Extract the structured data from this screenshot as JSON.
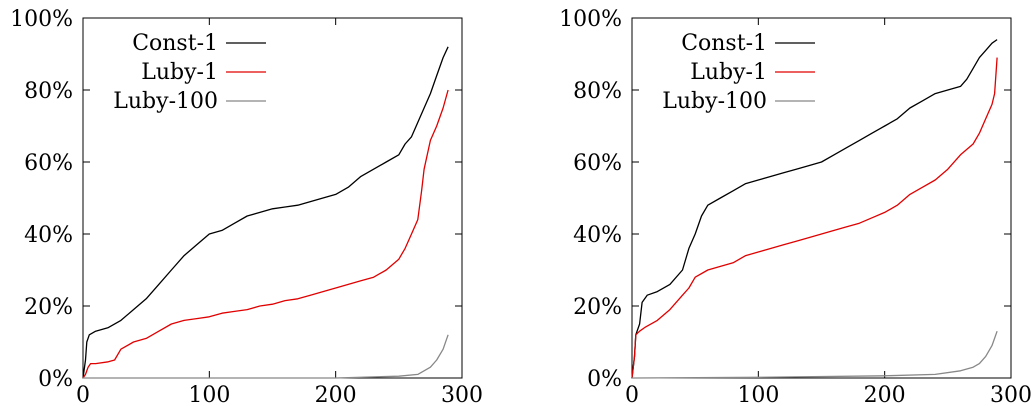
{
  "chart_data": [
    {
      "type": "line",
      "title": "",
      "xlabel": "",
      "ylabel": "",
      "xlim": [
        0,
        300
      ],
      "ylim": [
        0,
        100
      ],
      "x_ticks": [
        0,
        100,
        200,
        300
      ],
      "y_ticks": [
        0,
        20,
        40,
        60,
        80,
        100
      ],
      "y_tick_labels": [
        "0%",
        "20%",
        "40%",
        "60%",
        "80%",
        "100%"
      ],
      "grid": false,
      "legend_position": "top-left",
      "series": [
        {
          "name": "Const-1",
          "color": "#000000",
          "points": [
            [
              0,
              0
            ],
            [
              2,
              5
            ],
            [
              3,
              10
            ],
            [
              5,
              12
            ],
            [
              10,
              13
            ],
            [
              20,
              14
            ],
            [
              30,
              16
            ],
            [
              40,
              19
            ],
            [
              50,
              22
            ],
            [
              60,
              26
            ],
            [
              70,
              30
            ],
            [
              80,
              34
            ],
            [
              90,
              37
            ],
            [
              100,
              40
            ],
            [
              110,
              41
            ],
            [
              120,
              43
            ],
            [
              130,
              45
            ],
            [
              140,
              46
            ],
            [
              150,
              47
            ],
            [
              160,
              47.5
            ],
            [
              170,
              48
            ],
            [
              180,
              49
            ],
            [
              190,
              50
            ],
            [
              200,
              51
            ],
            [
              210,
              53
            ],
            [
              220,
              56
            ],
            [
              230,
              58
            ],
            [
              240,
              60
            ],
            [
              250,
              62
            ],
            [
              255,
              65
            ],
            [
              260,
              67
            ],
            [
              265,
              71
            ],
            [
              270,
              75
            ],
            [
              275,
              79
            ],
            [
              280,
              84
            ],
            [
              285,
              89
            ],
            [
              289,
              92
            ]
          ]
        },
        {
          "name": "Luby-1",
          "color": "#e00000",
          "points": [
            [
              0,
              0
            ],
            [
              2,
              1
            ],
            [
              4,
              3
            ],
            [
              6,
              4
            ],
            [
              10,
              4
            ],
            [
              20,
              4.5
            ],
            [
              25,
              5
            ],
            [
              30,
              8
            ],
            [
              40,
              10
            ],
            [
              50,
              11
            ],
            [
              60,
              13
            ],
            [
              70,
              15
            ],
            [
              80,
              16
            ],
            [
              90,
              16.5
            ],
            [
              100,
              17
            ],
            [
              110,
              18
            ],
            [
              120,
              18.5
            ],
            [
              130,
              19
            ],
            [
              140,
              20
            ],
            [
              150,
              20.5
            ],
            [
              160,
              21.5
            ],
            [
              170,
              22
            ],
            [
              180,
              23
            ],
            [
              190,
              24
            ],
            [
              200,
              25
            ],
            [
              210,
              26
            ],
            [
              220,
              27
            ],
            [
              230,
              28
            ],
            [
              240,
              30
            ],
            [
              250,
              33
            ],
            [
              255,
              36
            ],
            [
              260,
              40
            ],
            [
              265,
              44
            ],
            [
              268,
              52
            ],
            [
              270,
              58
            ],
            [
              275,
              66
            ],
            [
              280,
              70
            ],
            [
              285,
              75
            ],
            [
              289,
              80
            ]
          ]
        },
        {
          "name": "Luby-100",
          "color": "#888888",
          "points": [
            [
              0,
              0
            ],
            [
              100,
              0
            ],
            [
              200,
              0
            ],
            [
              250,
              0.5
            ],
            [
              265,
              1
            ],
            [
              270,
              2
            ],
            [
              275,
              3
            ],
            [
              280,
              5
            ],
            [
              285,
              8
            ],
            [
              289,
              12
            ]
          ]
        }
      ]
    },
    {
      "type": "line",
      "title": "",
      "xlabel": "",
      "ylabel": "",
      "xlim": [
        0,
        300
      ],
      "ylim": [
        0,
        100
      ],
      "x_ticks": [
        0,
        100,
        200,
        300
      ],
      "y_ticks": [
        0,
        20,
        40,
        60,
        80,
        100
      ],
      "y_tick_labels": [
        "0%",
        "20%",
        "40%",
        "60%",
        "80%",
        "100%"
      ],
      "grid": false,
      "legend_position": "top-left",
      "series": [
        {
          "name": "Const-1",
          "color": "#000000",
          "points": [
            [
              0,
              0
            ],
            [
              2,
              6
            ],
            [
              3,
              12
            ],
            [
              6,
              15
            ],
            [
              8,
              21
            ],
            [
              12,
              23
            ],
            [
              20,
              24
            ],
            [
              30,
              26
            ],
            [
              40,
              30
            ],
            [
              45,
              36
            ],
            [
              50,
              40
            ],
            [
              55,
              45
            ],
            [
              60,
              48
            ],
            [
              70,
              50
            ],
            [
              80,
              52
            ],
            [
              90,
              54
            ],
            [
              100,
              55
            ],
            [
              110,
              56
            ],
            [
              120,
              57
            ],
            [
              130,
              58
            ],
            [
              140,
              59
            ],
            [
              150,
              60
            ],
            [
              160,
              62
            ],
            [
              170,
              64
            ],
            [
              180,
              66
            ],
            [
              190,
              68
            ],
            [
              200,
              70
            ],
            [
              210,
              72
            ],
            [
              220,
              75
            ],
            [
              230,
              77
            ],
            [
              240,
              79
            ],
            [
              250,
              80
            ],
            [
              260,
              81
            ],
            [
              265,
              83
            ],
            [
              270,
              86
            ],
            [
              275,
              89
            ],
            [
              280,
              91
            ],
            [
              285,
              93
            ],
            [
              289,
              94
            ]
          ]
        },
        {
          "name": "Luby-1",
          "color": "#e00000",
          "points": [
            [
              0,
              0
            ],
            [
              2,
              6
            ],
            [
              3,
              12
            ],
            [
              6,
              13
            ],
            [
              10,
              14
            ],
            [
              20,
              16
            ],
            [
              30,
              19
            ],
            [
              40,
              23
            ],
            [
              45,
              25
            ],
            [
              50,
              28
            ],
            [
              60,
              30
            ],
            [
              70,
              31
            ],
            [
              80,
              32
            ],
            [
              90,
              34
            ],
            [
              100,
              35
            ],
            [
              110,
              36
            ],
            [
              120,
              37
            ],
            [
              130,
              38
            ],
            [
              140,
              39
            ],
            [
              150,
              40
            ],
            [
              160,
              41
            ],
            [
              170,
              42
            ],
            [
              180,
              43
            ],
            [
              190,
              44.5
            ],
            [
              200,
              46
            ],
            [
              210,
              48
            ],
            [
              220,
              51
            ],
            [
              230,
              53
            ],
            [
              240,
              55
            ],
            [
              250,
              58
            ],
            [
              260,
              62
            ],
            [
              270,
              65
            ],
            [
              275,
              68
            ],
            [
              280,
              72
            ],
            [
              285,
              76
            ],
            [
              287,
              79
            ],
            [
              289,
              89
            ]
          ]
        },
        {
          "name": "Luby-100",
          "color": "#888888",
          "points": [
            [
              0,
              0
            ],
            [
              100,
              0.2
            ],
            [
              200,
              0.6
            ],
            [
              240,
              1
            ],
            [
              260,
              2
            ],
            [
              270,
              3
            ],
            [
              275,
              4
            ],
            [
              280,
              6
            ],
            [
              285,
              9
            ],
            [
              289,
              13
            ]
          ]
        }
      ]
    }
  ]
}
